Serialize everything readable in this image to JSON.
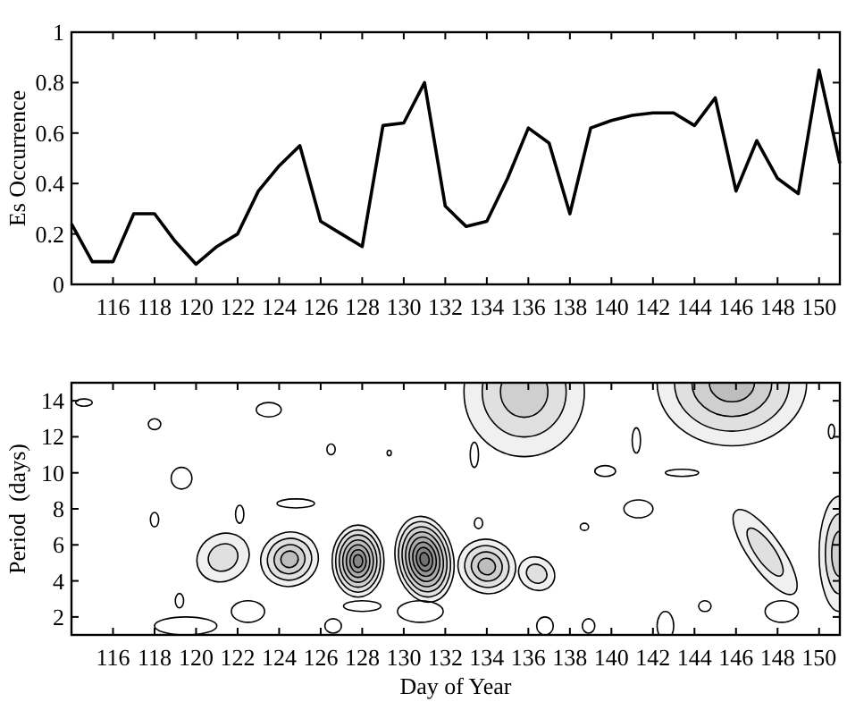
{
  "chart_data": [
    {
      "type": "line",
      "ylabel": "Es Occurrence",
      "x": [
        114,
        115,
        116,
        117,
        118,
        119,
        120,
        121,
        122,
        123,
        124,
        125,
        126,
        127,
        128,
        129,
        130,
        131,
        132,
        133,
        134,
        135,
        136,
        137,
        138,
        139,
        140,
        141,
        142,
        143,
        144,
        145,
        146,
        147,
        148,
        149,
        150,
        151
      ],
      "series": [
        {
          "color": "#000000",
          "values": [
            0.24,
            0.09,
            0.09,
            0.28,
            0.28,
            0.17,
            0.08,
            0.15,
            0.2,
            0.37,
            0.47,
            0.55,
            0.25,
            0.2,
            0.15,
            0.63,
            0.64,
            0.8,
            0.31,
            0.23,
            0.25,
            0.42,
            0.62,
            0.56,
            0.28,
            0.62,
            0.65,
            0.67,
            0.68,
            0.68,
            0.63,
            0.74,
            0.37,
            0.57,
            0.42,
            0.36,
            0.85,
            0.48
          ]
        }
      ],
      "xlim": [
        114,
        151
      ],
      "xticks": [
        116,
        118,
        120,
        122,
        124,
        126,
        128,
        130,
        132,
        134,
        136,
        138,
        140,
        142,
        144,
        146,
        148,
        150
      ],
      "ylim": [
        0,
        1
      ],
      "yticks": [
        0,
        0.2,
        0.4,
        0.6,
        0.8,
        1
      ],
      "grid": false,
      "marker": "none",
      "line_style": "solid"
    },
    {
      "type": "scatter",
      "xlabel": "Day of Year",
      "ylabel": "Period  (days)",
      "xlim": [
        114,
        151
      ],
      "xticks": [
        116,
        118,
        120,
        122,
        124,
        126,
        128,
        130,
        132,
        134,
        136,
        138,
        140,
        142,
        144,
        146,
        148,
        150
      ],
      "ylim": [
        1,
        15
      ],
      "yticks": [
        2,
        4,
        6,
        8,
        10,
        12,
        14
      ]
    }
  ]
}
